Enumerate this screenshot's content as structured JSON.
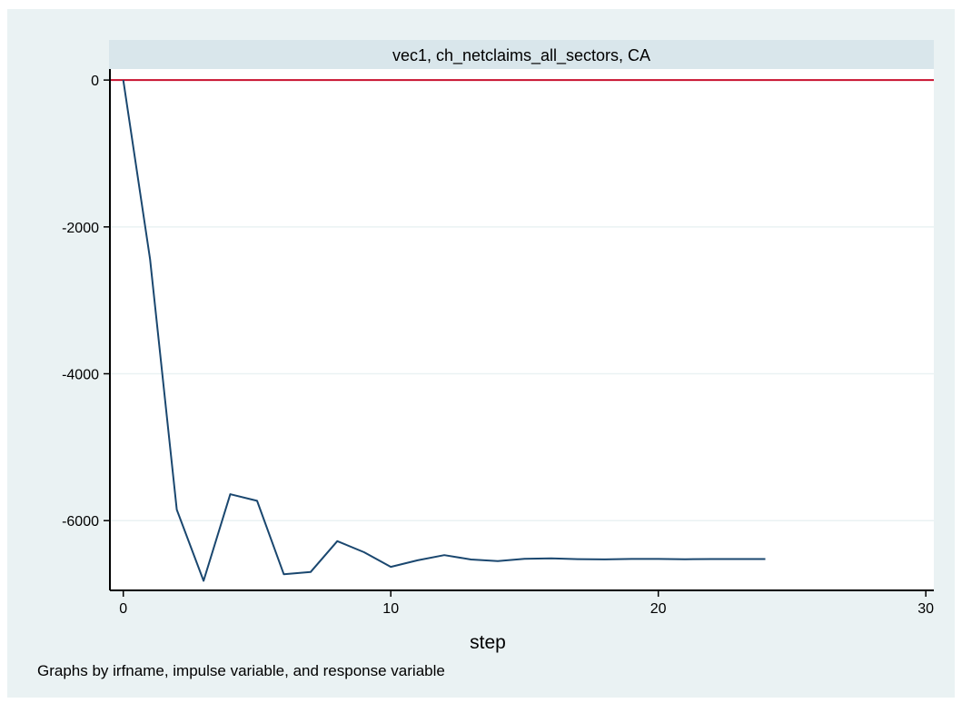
{
  "chart_data": {
    "type": "line",
    "panel_title": "vec1, ch_netclaims_all_sectors, CA",
    "xlabel": "step",
    "ylabel": "",
    "note": "Graphs by irfname, impulse variable, and response variable",
    "xlim": [
      -0.5,
      30.3
    ],
    "ylim": [
      -6950,
      150
    ],
    "x_ticks": [
      0,
      10,
      20,
      30
    ],
    "y_ticks": [
      0,
      -2000,
      -4000,
      -6000
    ],
    "grid": true,
    "reference_line": {
      "y": 0,
      "color": "#c8102e"
    },
    "line_color": "#1a476f",
    "series": [
      {
        "x": [
          0,
          1,
          2,
          3,
          4,
          5,
          6,
          7,
          8,
          9,
          10,
          11,
          12,
          13,
          14,
          15,
          16,
          17,
          18,
          19,
          20,
          21,
          22,
          23,
          24
        ],
        "values": [
          0,
          -2440,
          -5850,
          -6820,
          -5640,
          -5730,
          -6730,
          -6700,
          -6280,
          -6430,
          -6630,
          -6540,
          -6470,
          -6530,
          -6550,
          -6520,
          -6515,
          -6525,
          -6528,
          -6522,
          -6522,
          -6526,
          -6523,
          -6523,
          -6523
        ]
      }
    ]
  }
}
